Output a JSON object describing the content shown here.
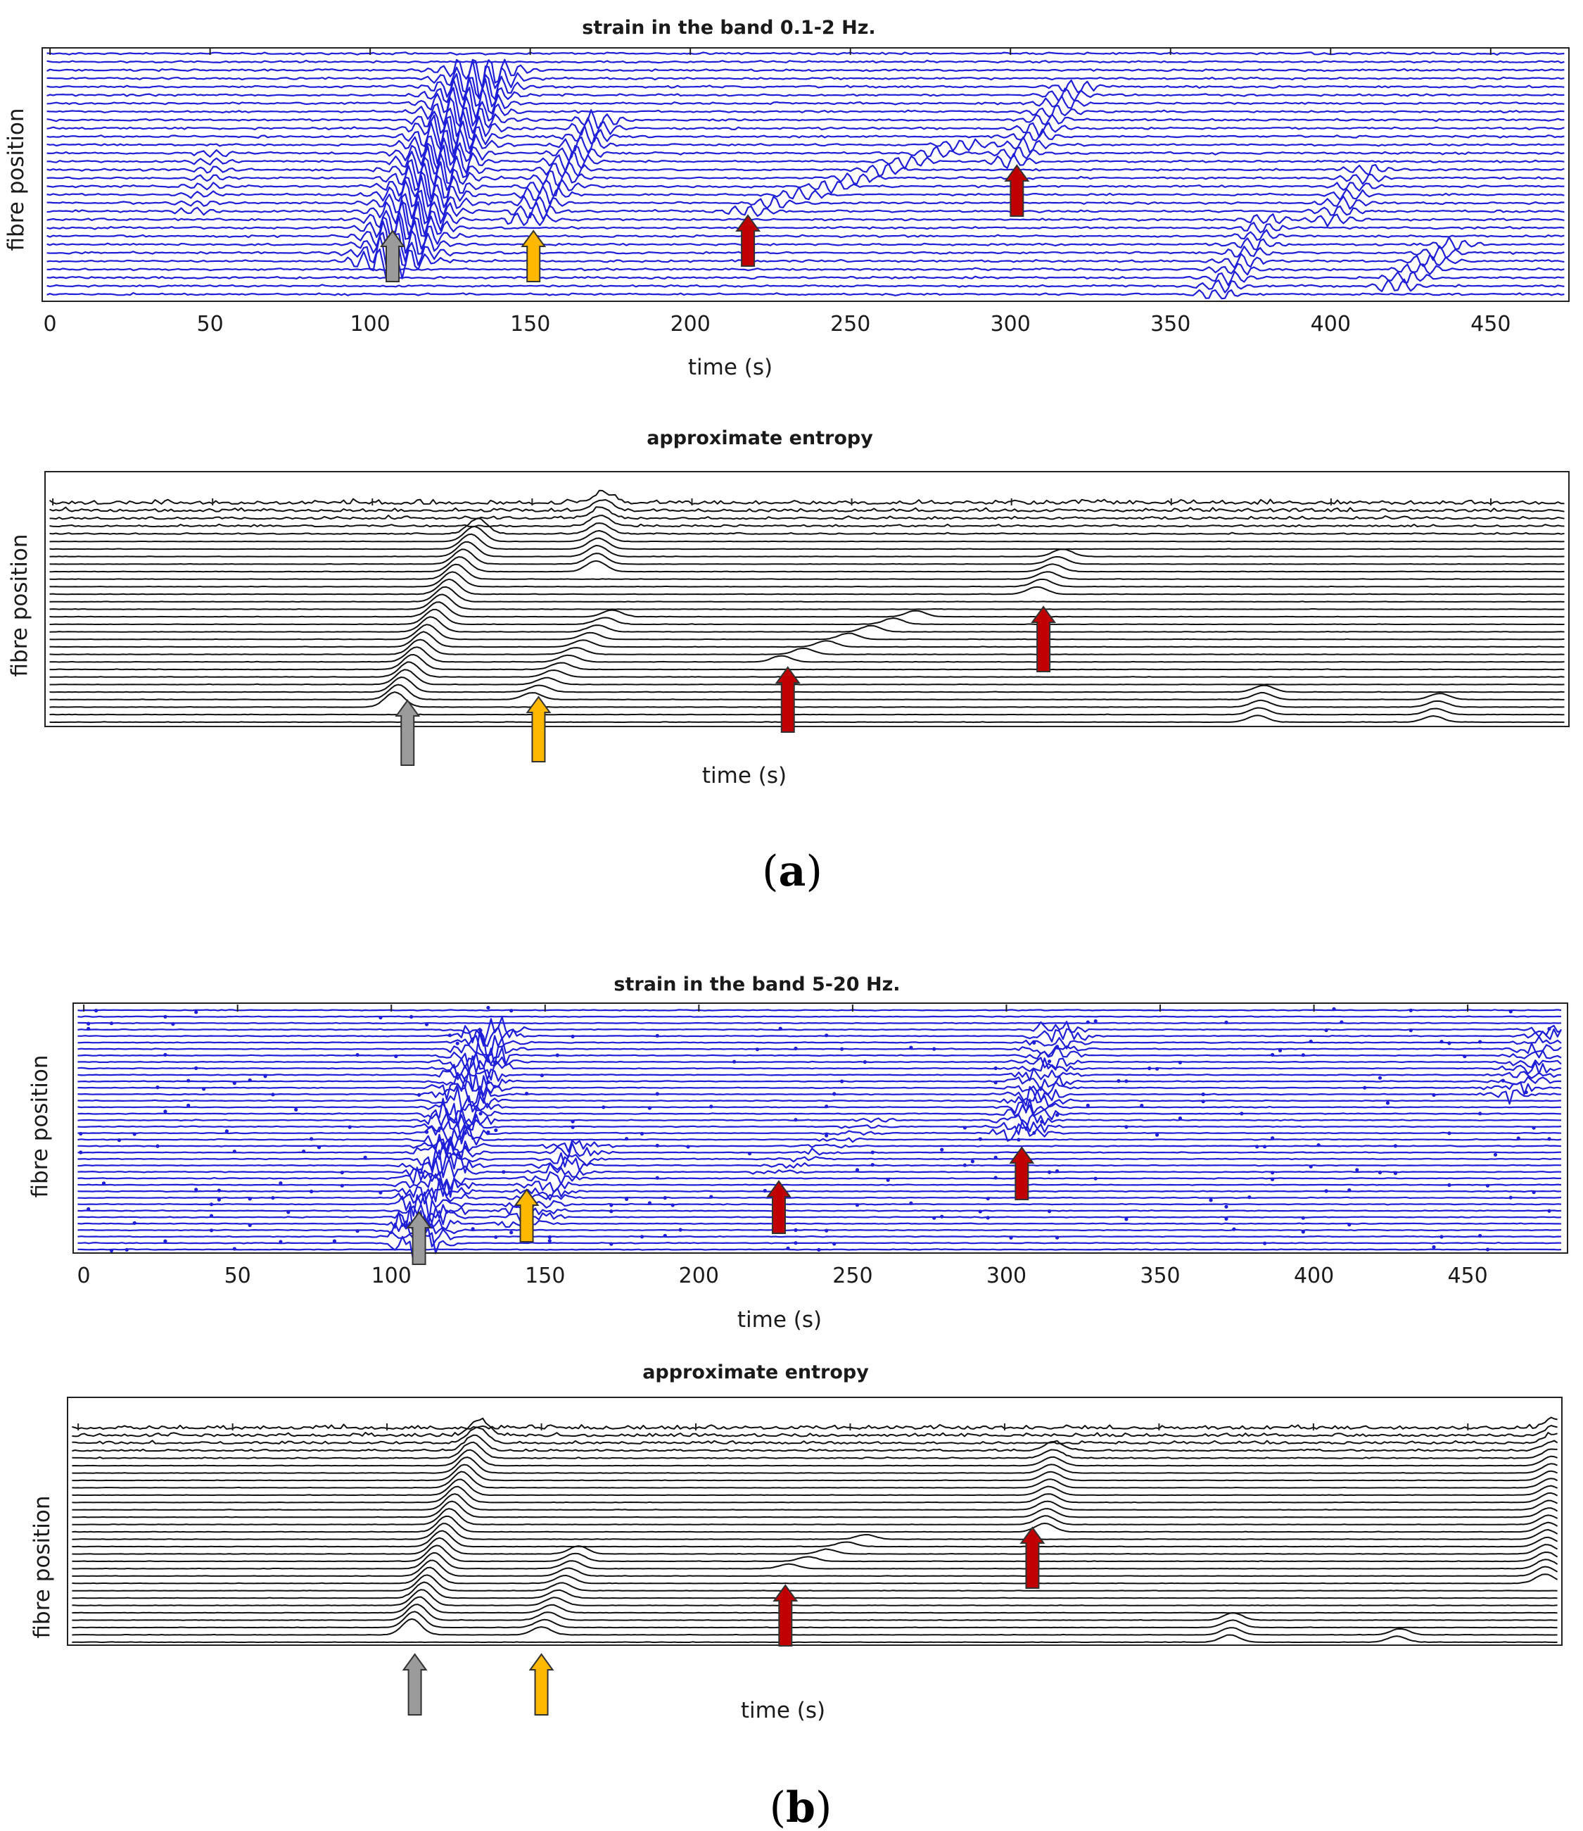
{
  "figure": {
    "caption_a": {
      "open": "(",
      "letter": "a",
      "close": ")"
    },
    "caption_b": {
      "open": "(",
      "letter": "b",
      "close": ")"
    }
  },
  "colors": {
    "strain": "#1f1fd8",
    "entropy": "#111111",
    "arrow_gray": "#9b9b9b",
    "arrow_yellow": "#ffb800",
    "arrow_red": "#c00000",
    "arrow_edge": "#333333"
  },
  "chart_data": [
    {
      "id": "a_strain",
      "type": "line",
      "title": "strain in the band 0.1-2 Hz.",
      "xlabel": "time (s)",
      "ylabel": "fibre position",
      "xlim": [
        -2,
        474
      ],
      "xticks": [
        0,
        50,
        100,
        150,
        200,
        250,
        300,
        350,
        400,
        450
      ],
      "traces": 30,
      "events": [
        {
          "t0": 107,
          "t1": 135,
          "first": 4,
          "last": 27,
          "amp": 2.4,
          "kind": "main"
        },
        {
          "t0": 149,
          "t1": 172,
          "first": 9,
          "last": 21,
          "amp": 1.3,
          "kind": "wave"
        },
        {
          "t0": 218,
          "t1": 285,
          "first": 10,
          "last": 18,
          "amp": 0.9,
          "kind": "wave"
        },
        {
          "t0": 300,
          "t1": 320,
          "first": 16,
          "last": 25,
          "amp": 1.0,
          "kind": "wave"
        },
        {
          "t0": 45,
          "t1": 52,
          "first": 10,
          "last": 17,
          "amp": 0.5,
          "kind": "wave"
        },
        {
          "t0": 365,
          "t1": 380,
          "first": 0,
          "last": 9,
          "amp": 0.9,
          "kind": "wave"
        },
        {
          "t0": 400,
          "t1": 412,
          "first": 9,
          "last": 15,
          "amp": 0.8,
          "kind": "wave"
        },
        {
          "t0": 420,
          "t1": 438,
          "first": 1,
          "last": 6,
          "amp": 0.9,
          "kind": "wave"
        }
      ],
      "arrows": [
        {
          "t": 107,
          "color": "gray"
        },
        {
          "t": 151,
          "color": "yellow"
        },
        {
          "t": 218,
          "color": "red"
        },
        {
          "t": 302,
          "color": "red"
        }
      ]
    },
    {
      "id": "a_entropy",
      "type": "line",
      "title": "approximate entropy",
      "xlabel": "time (s)",
      "ylabel": "fibre position",
      "xlim": [
        -2,
        474
      ],
      "traces": 30,
      "events": [
        {
          "t0": 107,
          "t1": 133,
          "first": 2,
          "last": 25,
          "amp": 2.2,
          "kind": "peak"
        },
        {
          "t0": 150,
          "t1": 175,
          "first": 3,
          "last": 14,
          "amp": 1.0,
          "kind": "peak"
        },
        {
          "t0": 170,
          "t1": 172,
          "first": 20,
          "last": 29,
          "amp": 1.6,
          "kind": "peak"
        },
        {
          "t0": 228,
          "t1": 270,
          "first": 8,
          "last": 14,
          "amp": 0.9,
          "kind": "peak"
        },
        {
          "t0": 308,
          "t1": 316,
          "first": 17,
          "last": 22,
          "amp": 1.1,
          "kind": "peak"
        },
        {
          "t0": 377,
          "t1": 379,
          "first": 0,
          "last": 4,
          "amp": 1.0,
          "kind": "peak"
        },
        {
          "t0": 432,
          "t1": 434,
          "first": 0,
          "last": 3,
          "amp": 0.9,
          "kind": "peak"
        }
      ],
      "arrows": [
        {
          "t": 111,
          "color": "gray"
        },
        {
          "t": 152,
          "color": "yellow"
        },
        {
          "t": 230,
          "color": "red"
        },
        {
          "t": 310,
          "color": "red"
        }
      ]
    },
    {
      "id": "b_strain",
      "type": "scatter",
      "title": "strain in the band 5-20 Hz.",
      "xlabel": "time (s)",
      "ylabel": "fibre position",
      "xlim": [
        -3,
        482
      ],
      "xticks": [
        0,
        50,
        100,
        150,
        200,
        250,
        300,
        350,
        400,
        450
      ],
      "traces": 38,
      "events": [
        {
          "t0": 108,
          "t1": 132,
          "first": 1,
          "last": 34,
          "amp": 3.0,
          "kind": "burst"
        },
        {
          "t0": 143,
          "t1": 160,
          "first": 4,
          "last": 16,
          "amp": 1.4,
          "kind": "burst"
        },
        {
          "t0": 225,
          "t1": 258,
          "first": 12,
          "last": 20,
          "amp": 0.5,
          "kind": "burst"
        },
        {
          "t0": 305,
          "t1": 318,
          "first": 18,
          "last": 34,
          "amp": 1.6,
          "kind": "burst"
        },
        {
          "t0": 465,
          "t1": 478,
          "first": 24,
          "last": 34,
          "amp": 1.2,
          "kind": "burst"
        }
      ],
      "arrows": [
        {
          "t": 109,
          "color": "gray"
        },
        {
          "t": 144,
          "color": "yellow"
        },
        {
          "t": 226,
          "color": "red"
        },
        {
          "t": 305,
          "color": "red"
        }
      ]
    },
    {
      "id": "b_entropy",
      "type": "line",
      "title": "approximate entropy",
      "xlabel": "time (s)",
      "ylabel": "fibre position",
      "xlim": [
        -3,
        480
      ],
      "traces": 30,
      "events": [
        {
          "t0": 108,
          "t1": 130,
          "first": 1,
          "last": 28,
          "amp": 2.4,
          "kind": "peak"
        },
        {
          "t0": 150,
          "t1": 162,
          "first": 1,
          "last": 12,
          "amp": 1.2,
          "kind": "peak"
        },
        {
          "t0": 230,
          "t1": 255,
          "first": 10,
          "last": 14,
          "amp": 0.7,
          "kind": "peak"
        },
        {
          "t0": 313,
          "t1": 316,
          "first": 15,
          "last": 26,
          "amp": 1.3,
          "kind": "peak"
        },
        {
          "t0": 373,
          "t1": 374,
          "first": 0,
          "last": 3,
          "amp": 1.1,
          "kind": "peak"
        },
        {
          "t0": 427,
          "t1": 428,
          "first": 0,
          "last": 1,
          "amp": 0.9,
          "kind": "peak"
        },
        {
          "t0": 475,
          "t1": 478,
          "first": 8,
          "last": 29,
          "amp": 1.4,
          "kind": "peak"
        }
      ],
      "arrows": [
        {
          "t": 109,
          "color": "gray"
        },
        {
          "t": 150,
          "color": "yellow"
        },
        {
          "t": 229,
          "color": "red"
        },
        {
          "t": 309,
          "color": "red"
        }
      ]
    }
  ]
}
